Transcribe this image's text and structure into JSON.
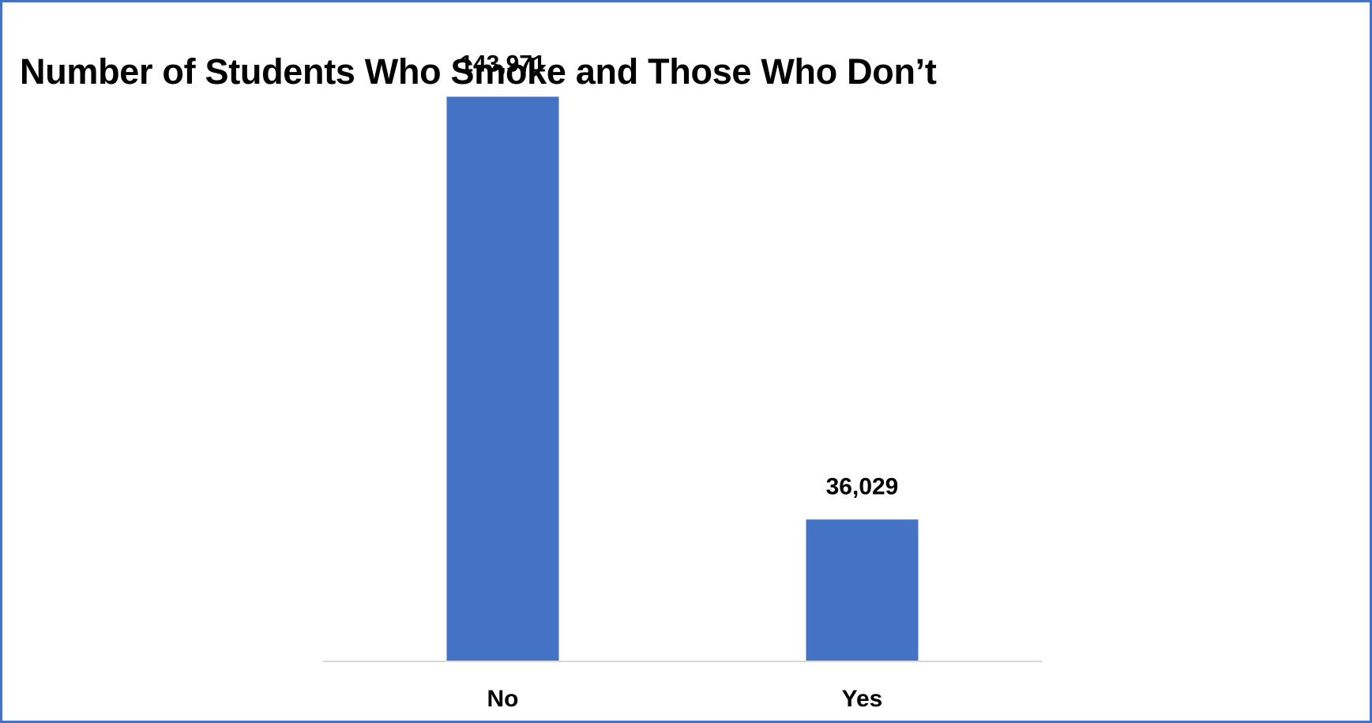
{
  "chart_data": {
    "type": "bar",
    "title": "Number of Students Who Smoke and Those Who Don’t",
    "categories": [
      "No",
      "Yes"
    ],
    "values": [
      143971,
      36029
    ],
    "data_labels": [
      "143,971",
      "36,029"
    ],
    "xlabel": "",
    "ylabel": "",
    "ylim": [
      0,
      160000
    ],
    "grid": false,
    "legend": "none",
    "colors": {
      "bar": "#4472c4",
      "border": "#4472c4",
      "axis": "#d9d9d9"
    }
  }
}
